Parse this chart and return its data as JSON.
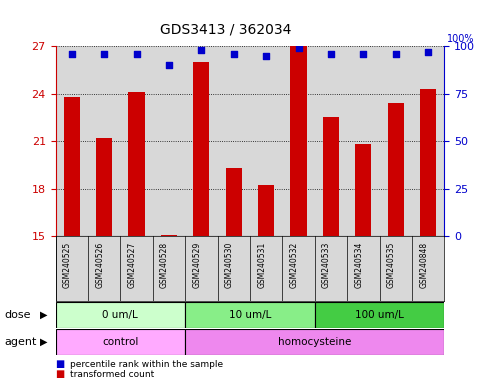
{
  "title": "GDS3413 / 362034",
  "samples": [
    "GSM240525",
    "GSM240526",
    "GSM240527",
    "GSM240528",
    "GSM240529",
    "GSM240530",
    "GSM240531",
    "GSM240532",
    "GSM240533",
    "GSM240534",
    "GSM240535",
    "GSM240848"
  ],
  "bar_values": [
    23.8,
    21.2,
    24.1,
    15.1,
    26.0,
    19.3,
    18.2,
    27.0,
    22.5,
    20.8,
    23.4,
    24.3
  ],
  "percentile_values": [
    96,
    96,
    96,
    90,
    98,
    96,
    95,
    99,
    96,
    96,
    96,
    97
  ],
  "ylim_left": [
    15,
    27
  ],
  "ylim_right": [
    0,
    100
  ],
  "yticks_left": [
    15,
    18,
    21,
    24,
    27
  ],
  "yticks_right": [
    0,
    25,
    50,
    75,
    100
  ],
  "bar_color": "#cc0000",
  "dot_color": "#0000cc",
  "bar_width": 0.5,
  "dose_groups": [
    {
      "label": "0 um/L",
      "start": 0,
      "end": 4,
      "color": "#ccffcc"
    },
    {
      "label": "10 um/L",
      "start": 4,
      "end": 8,
      "color": "#88ee88"
    },
    {
      "label": "100 um/L",
      "start": 8,
      "end": 12,
      "color": "#44cc44"
    }
  ],
  "agent_groups": [
    {
      "label": "control",
      "start": 0,
      "end": 4,
      "color": "#ffaaff"
    },
    {
      "label": "homocysteine",
      "start": 4,
      "end": 12,
      "color": "#ee88ee"
    }
  ],
  "dose_label": "dose",
  "agent_label": "agent",
  "legend_bar": "transformed count",
  "legend_dot": "percentile rank within the sample",
  "grid_color": "#000000",
  "axis_color_left": "#cc0000",
  "axis_color_right": "#0000cc",
  "plot_bg": "#d8d8d8"
}
